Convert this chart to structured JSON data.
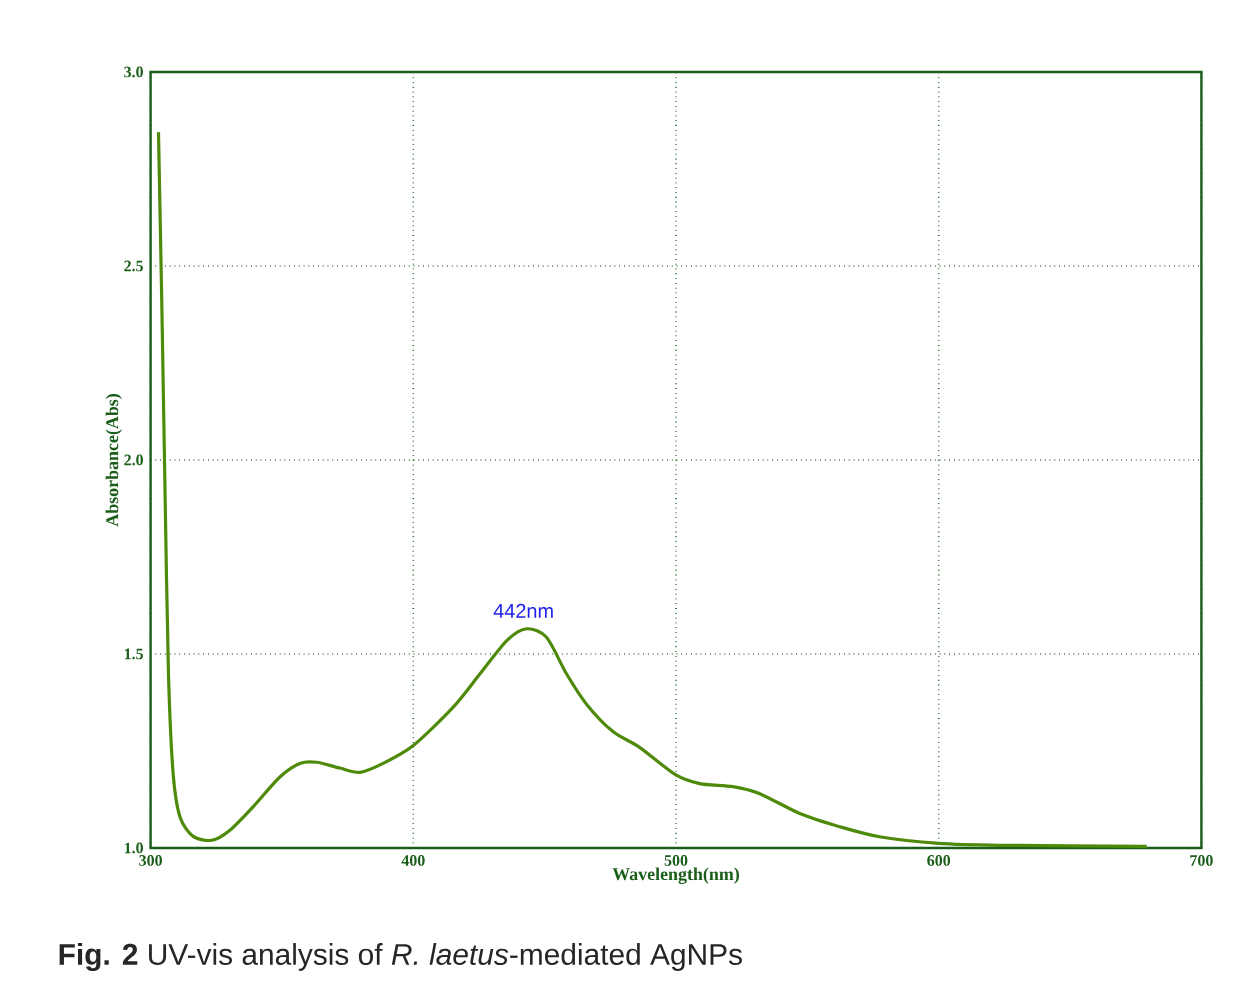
{
  "chart_data": {
    "type": "line",
    "xlabel": "Wavelength(nm)",
    "ylabel": "Absorbance(Abs)",
    "x": [
      303,
      304.3,
      305.6,
      306.8,
      308.6,
      311.2,
      316.2,
      323.3,
      330.2,
      339,
      349.2,
      356.8,
      363.2,
      372,
      379.7,
      388.5,
      400,
      415.2,
      425.4,
      435.5,
      443.1,
      450.7,
      458.3,
      466,
      476,
      486,
      499.8,
      509,
      521.7,
      531.9,
      547.1,
      562.3,
      577.5,
      600,
      623.2,
      679.2
    ],
    "series": [
      {
        "color": "#4e8a0a",
        "values": [
          2.845,
          2.39,
          1.877,
          1.449,
          1.19,
          1.08,
          1.03,
          1.02,
          1.046,
          1.106,
          1.183,
          1.218,
          1.221,
          1.206,
          1.195,
          1.218,
          1.264,
          1.363,
          1.449,
          1.534,
          1.565,
          1.543,
          1.449,
          1.37,
          1.3,
          1.26,
          1.189,
          1.166,
          1.158,
          1.14,
          1.089,
          1.055,
          1.029,
          1.012,
          1.007,
          1.004
        ]
      }
    ],
    "xlim": [
      300,
      700
    ],
    "ylim": [
      1,
      3
    ],
    "xticks": [
      300,
      400,
      500,
      600,
      700
    ],
    "yticks": [
      {
        "value": 1,
        "label": "1.0"
      },
      {
        "value": 1.5,
        "label": "1.5"
      },
      {
        "value": 2,
        "label": "2.0"
      },
      {
        "value": 2.5,
        "label": "2.5"
      },
      {
        "value": 3,
        "label": "3.0"
      }
    ],
    "grid": true,
    "marker": "none",
    "line_style": "solid",
    "annotations": [
      {
        "text": "442nm",
        "x": 442,
        "y": 1.565
      },
      "**Fig. 2** UV-vis analysis of *R. laetus*-mediated AgNPs"
    ]
  }
}
